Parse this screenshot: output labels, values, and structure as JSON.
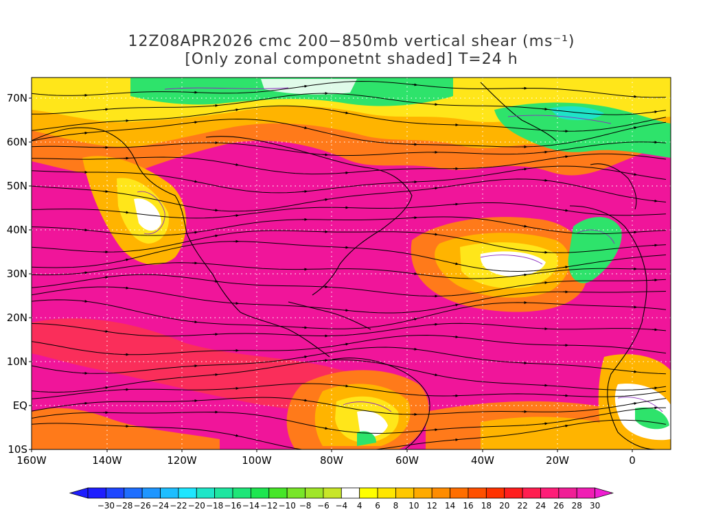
{
  "title": {
    "line1": "12Z08APR2026 cmc 200−850mb vertical shear (ms⁻¹)",
    "line2": "[Only zonal componetnt shaded] T=24 h"
  },
  "map": {
    "lat_labels": [
      "70N",
      "60N",
      "50N",
      "40N",
      "30N",
      "20N",
      "10N",
      "EQ",
      "10S"
    ],
    "lon_labels": [
      "160W",
      "140W",
      "120W",
      "100W",
      "80W",
      "60W",
      "40W",
      "20W",
      "0"
    ],
    "colors": {
      "jet_core": "#f0159a",
      "strong": "#fa2e5a",
      "moderate": "#ff7a1a",
      "weak": "#ffb400",
      "light": "#ffe61a",
      "neg_green": "#2ee36b",
      "neg_cyan": "#1ee3c8",
      "land_outline": "#000000",
      "contour_purple": "#8a2bbf",
      "grid": "#ffffff"
    }
  },
  "colorbar": {
    "labels": [
      "-30",
      "-28",
      "-26",
      "-24",
      "-22",
      "-20",
      "-18",
      "-16",
      "-14",
      "-12",
      "-10",
      "-8",
      "-6",
      "-4",
      "4",
      "6",
      "8",
      "10",
      "12",
      "14",
      "16",
      "18",
      "20",
      "22",
      "24",
      "26",
      "28",
      "30"
    ],
    "colors": [
      "#1e1eff",
      "#1e46ff",
      "#1e6eff",
      "#1e96ff",
      "#1ebeff",
      "#1ee6ff",
      "#1ee6c8",
      "#1ee6a0",
      "#1ee678",
      "#1ee650",
      "#46e628",
      "#78e628",
      "#a0e628",
      "#c8e628",
      "#ffffff",
      "#ffff00",
      "#ffe600",
      "#ffc800",
      "#ffaa00",
      "#ff8c00",
      "#ff6e00",
      "#ff5000",
      "#ff3200",
      "#ff1e1e",
      "#ff1e50",
      "#ff1e78",
      "#f01e96",
      "#f01eb4",
      "#f01ed2"
    ]
  }
}
